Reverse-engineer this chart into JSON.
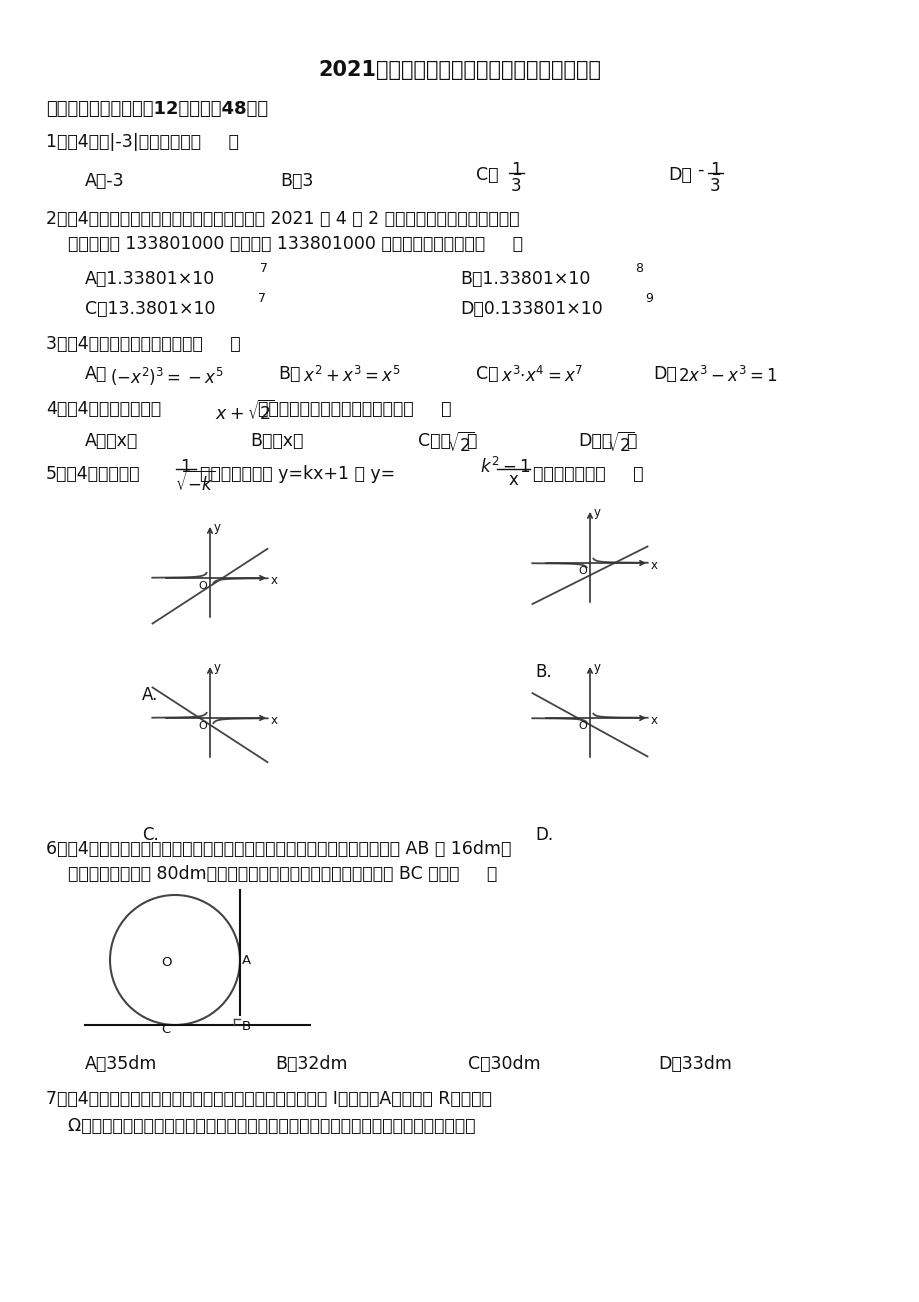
{
  "title": "2021年山东省德州市德城区中考数学二模试卷",
  "bg_color": "#ffffff",
  "text_color": "#1a1a1a",
  "section1": "一、选择题（本大题共12小题，共48分）",
  "q1": "1．（4分）|-3|的相反数是（     ）",
  "q2_line1": "2．（4分）根据国家卫健委最新数据，截至到 2021 年 4 月 2 日，全国各地累计报告接种新",
  "q2_line2": "    冠病毒疫苗 133801000 剂次，将 133801000 用科学记数法表示为（     ）",
  "q3": "3．（4分）下列运算正确的是（     ）",
  "q4_pre": "4．（4分）关于代数式",
  "q4_post": "的结果，下列说法一定正确的是（     ）",
  "q5_pre": "5．（4分）若式子",
  "q5_mid": "有意义，则函数 y=kx+1 和 y=",
  "q5_post": "的图象可能是（     ）",
  "q6_line1": "6．（4分）如图，王老师将汽车停放置在地面台阶直角处，他测量了台阶高 AB 为 16dm，",
  "q6_line2": "    汽车轮胎的直径为 80dm，请你计算直角顶点到轮胎与底面接触点 BC 长为（     ）",
  "q7_line1": "7．（4分）已知蓄电池的电压为定值，使用蓄电池时，电流 I（单位：A）与电阻 R（单位：",
  "q7_line2": "    Ω）是反比例函数关系，它的图象如图所示，如果以此蓄电池为电源的用电器的限制电流"
}
